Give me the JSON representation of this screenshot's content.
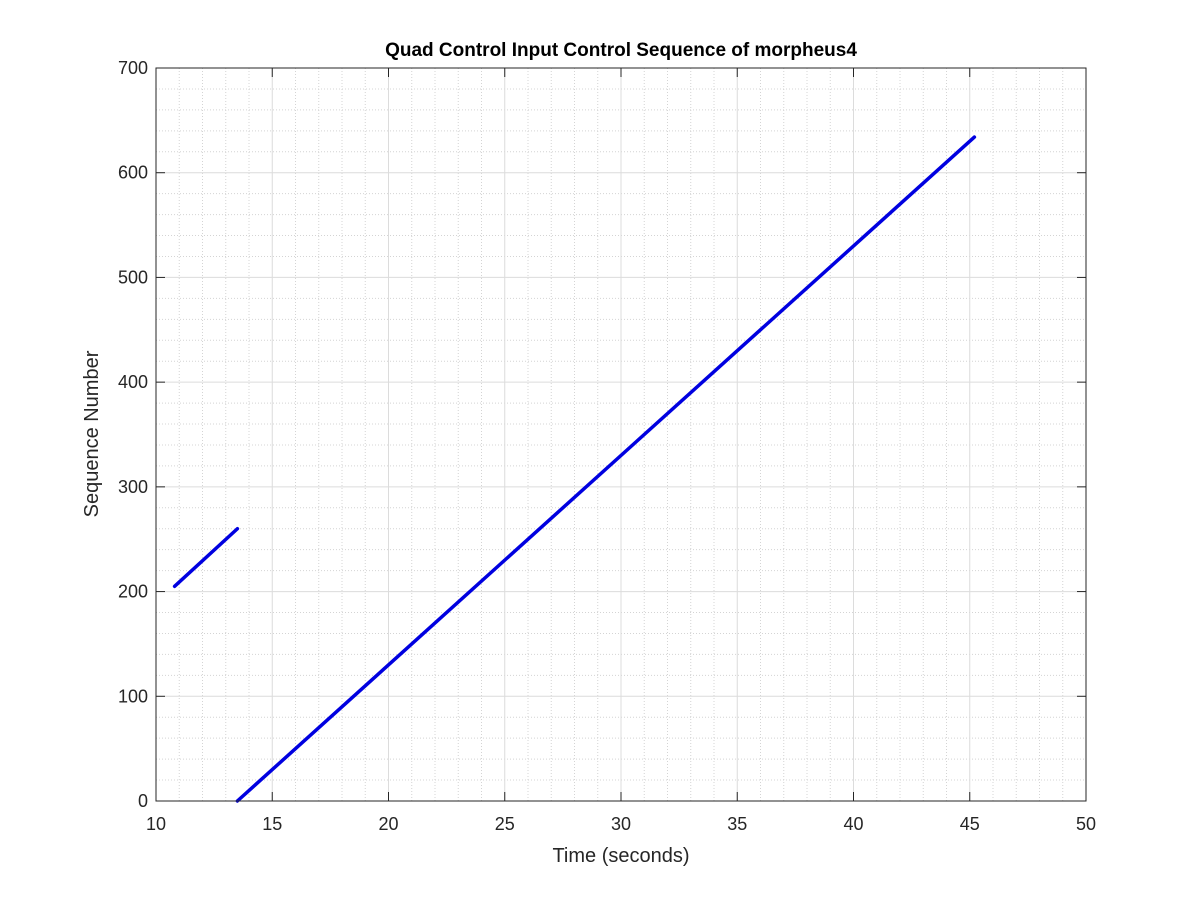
{
  "chart_data": {
    "type": "line",
    "title": "Quad Control Input Control Sequence of morpheus4",
    "xlabel": "Time (seconds)",
    "ylabel": "Sequence Number",
    "xlim": [
      10,
      50
    ],
    "ylim": [
      0,
      700
    ],
    "xticks": [
      "10",
      "15",
      "20",
      "25",
      "30",
      "35",
      "40",
      "45",
      "50"
    ],
    "yticks": [
      "0",
      "100",
      "200",
      "300",
      "400",
      "500",
      "600",
      "700"
    ],
    "grid": true,
    "minor_grid": true,
    "legend": "none",
    "color": "#0000e0",
    "series": [
      {
        "segments": [
          {
            "x": [
              10.8,
              13.5
            ],
            "y": [
              205,
              260
            ]
          },
          {
            "x": [
              13.5,
              45.2
            ],
            "y": [
              0,
              634
            ]
          }
        ]
      }
    ]
  }
}
